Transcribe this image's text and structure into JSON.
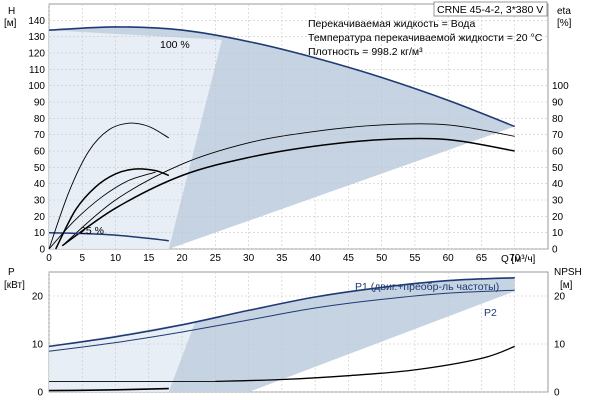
{
  "product": "CRNE 45-4-2, 3*380 V",
  "info_lines": [
    "Перекачиваемая жидкость = Вода",
    "Температура перекачиваемой жидкости = 20 °C",
    "Плотность = 998.2 кг/м³"
  ],
  "colors": {
    "main_curve": "#1f3a73",
    "region": "#c5d3e2",
    "secondary": "#000000"
  },
  "chart_data": [
    {
      "type": "line",
      "panel": "head-efficiency",
      "xlabel": "Q [м³/ч]",
      "ylabel_left": [
        "H",
        "[м]"
      ],
      "ylabel_right": [
        "eta",
        "[%]"
      ],
      "xlim": [
        0,
        75
      ],
      "ylim": [
        0,
        150
      ],
      "x_ticks": [
        "0",
        "5",
        "10",
        "15",
        "20",
        "25",
        "30",
        "35",
        "40",
        "45",
        "50",
        "55",
        "60",
        "65",
        "70"
      ],
      "y_ticks_left": [
        "0",
        "10",
        "20",
        "30",
        "40",
        "50",
        "60",
        "70",
        "80",
        "90",
        "100",
        "110",
        "120",
        "130",
        "140"
      ],
      "y_ticks_right": [
        "0",
        "10",
        "20",
        "30",
        "40",
        "50",
        "60",
        "70",
        "80",
        "90",
        "100"
      ],
      "grid": true,
      "annotations": [
        "100 %",
        "25 %"
      ],
      "series": [
        {
          "role": "head-100",
          "x": [
            0,
            10,
            20,
            30,
            40,
            50,
            60,
            70
          ],
          "y": [
            134,
            136,
            134,
            127,
            117,
            105,
            91,
            75
          ]
        },
        {
          "role": "eff-upper",
          "x": [
            2,
            10,
            20,
            30,
            40,
            50,
            60,
            70
          ],
          "y": [
            2,
            30,
            52,
            65,
            72,
            76,
            76,
            69
          ]
        },
        {
          "role": "eff-lower",
          "x": [
            2,
            10,
            20,
            30,
            40,
            50,
            60,
            70
          ],
          "y": [
            2,
            25,
            45,
            56,
            63,
            67,
            67,
            60
          ]
        },
        {
          "role": "head-25",
          "x": [
            0,
            5,
            10,
            15,
            18
          ],
          "y": [
            10,
            9.5,
            8.5,
            6.5,
            5
          ]
        },
        {
          "role": "eff-25-thin",
          "x": [
            0,
            3,
            6,
            9,
            12,
            15,
            18
          ],
          "y": [
            0,
            35,
            60,
            73,
            77,
            75,
            68
          ]
        },
        {
          "role": "eff-25-bold",
          "x": [
            1,
            4,
            7,
            10,
            13,
            16,
            18
          ],
          "y": [
            0,
            24,
            38,
            46,
            49,
            48,
            45
          ]
        },
        {
          "role": "eff-25-thin2",
          "x": [
            0,
            4,
            8,
            12,
            16
          ],
          "y": [
            0,
            18,
            32,
            42,
            47
          ]
        }
      ]
    },
    {
      "type": "line",
      "panel": "power-npsh",
      "xlim": [
        0,
        75
      ],
      "ylim": [
        0,
        25
      ],
      "ylabel_left": [
        "P",
        "[кВт]"
      ],
      "ylabel_right": [
        "NPSH",
        "[м]"
      ],
      "y_ticks_left": [
        "0",
        "10",
        "20"
      ],
      "y_ticks_right": [
        "0",
        "10",
        "20"
      ],
      "grid": true,
      "series": [
        {
          "name": "P1 (двиг.+преобр-ль частоты)",
          "x": [
            0,
            10,
            20,
            30,
            40,
            50,
            60,
            70
          ],
          "y": [
            9.5,
            11.5,
            14,
            17,
            19.8,
            21.8,
            23.2,
            23.8
          ]
        },
        {
          "name": "P2",
          "x": [
            0,
            10,
            20,
            30,
            40,
            50,
            60,
            70
          ],
          "y": [
            8.5,
            10.3,
            12.5,
            15,
            17.5,
            19.3,
            20.6,
            21.2
          ]
        },
        {
          "role": "npsh",
          "x": [
            25,
            35,
            45,
            55,
            65,
            70
          ],
          "y": [
            2.2,
            2.6,
            3.4,
            4.6,
            7,
            9.5
          ]
        },
        {
          "role": "p-25-bold",
          "x": [
            0,
            5,
            10,
            15,
            18
          ],
          "y": [
            0.3,
            0.35,
            0.45,
            0.6,
            0.7
          ]
        }
      ]
    }
  ]
}
